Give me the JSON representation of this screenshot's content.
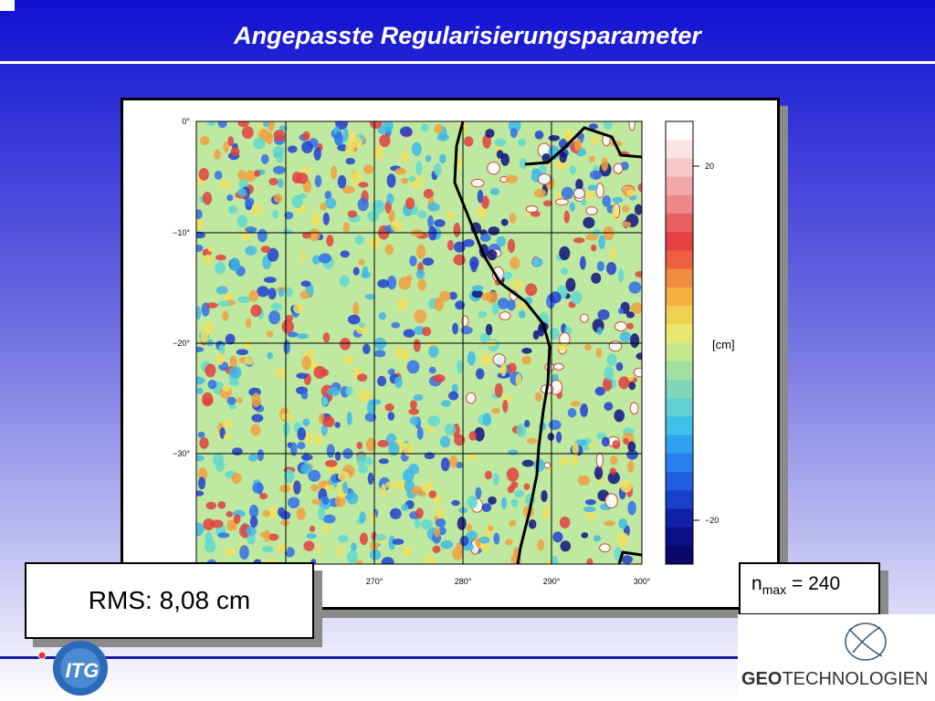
{
  "header": {
    "title": "Angepasste Regularisierungsparameter"
  },
  "figure": {
    "lat_labels": [
      "0°",
      "−10°",
      "−20°",
      "−30°"
    ],
    "lon_labels": [
      "270°",
      "280°",
      "290°",
      "300°"
    ],
    "colorbar": {
      "tick_labels": [
        "20",
        "−20"
      ],
      "unit": "[cm]"
    }
  },
  "rms_box": {
    "text": "RMS: 8,08 cm"
  },
  "nmax_box": {
    "symbol": "n",
    "subscript": "max",
    "text": "= 240"
  },
  "logos": {
    "itg": "ITG",
    "geo_bold": "GEO",
    "geo_rest": "TECHNOLOGIEN"
  }
}
